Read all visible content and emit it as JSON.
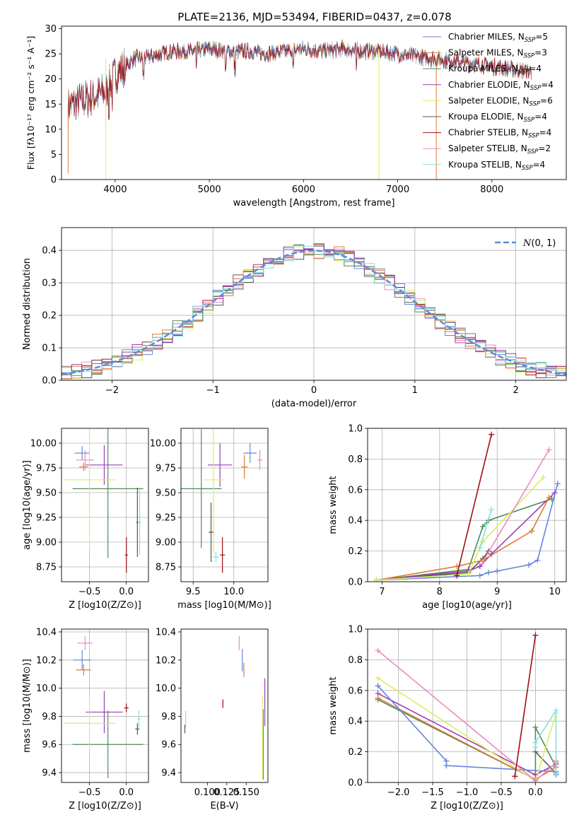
{
  "figure_title": "PLATE=2136, MJD=53494, FIBERID=0437, z=0.078",
  "colors": [
    "#6686d8",
    "#e07b35",
    "#4f8c5c",
    "#9b3fb4",
    "#d6f060",
    "#555555",
    "#a00f10",
    "#e88cc0",
    "#85e0e0"
  ],
  "chart_data": [
    {
      "type": "line",
      "panel": "spectrum",
      "xlabel": "wavelength [Angstrom, rest frame]",
      "ylabel": "Flux [fλ10⁻¹⁷ erg cm⁻² s⁻¹ A⁻¹]",
      "xlim": [
        3430,
        8790
      ],
      "ylim": [
        0,
        30.5
      ],
      "xticks": [
        4000,
        5000,
        6000,
        7000,
        8000
      ],
      "yticks": [
        0,
        5,
        10,
        15,
        20,
        25,
        30
      ],
      "legend_position": "right",
      "continuum": {
        "x": [
          3500,
          3700,
          3900,
          4000,
          4200,
          4400,
          4600,
          4800,
          5000,
          5200,
          5400,
          5600,
          5800,
          6000,
          6200,
          6400,
          6600,
          6800,
          7000,
          7200,
          7400,
          7600,
          7800,
          8000,
          8200,
          8400
        ],
        "y": [
          14.5,
          16,
          17.5,
          21,
          24,
          24.5,
          25.5,
          25.5,
          26,
          25.5,
          25.5,
          25,
          25.5,
          26,
          25.5,
          26,
          25.5,
          25.5,
          25,
          24.5,
          24,
          23.5,
          23,
          22.5,
          22,
          21.5
        ]
      },
      "series": [
        {
          "name": "Chabrier MILES, N_SSP=5",
          "legend_text": "Chabrier MILES, NSSP=5"
        },
        {
          "name": "Salpeter MILES, N_SSP=3",
          "legend_text": "Salpeter MILES, NSSP=3"
        },
        {
          "name": "Kroupa MILES, N_SSP=4",
          "legend_text": "Kroupa MILES, NSSP=4"
        },
        {
          "name": "Chabrier ELODIE, N_SSP=4",
          "legend_text": "Chabrier ELODIE, NSSP=4"
        },
        {
          "name": "Salpeter ELODIE, N_SSP=6",
          "legend_text": "Salpeter ELODIE, NSSP=6"
        },
        {
          "name": "Kroupa ELODIE, N_SSP=4",
          "legend_text": "Kroupa ELODIE, NSSP=4"
        },
        {
          "name": "Chabrier STELIB, N_SSP=4",
          "legend_text": "Chabrier STELIB, NSSP=4"
        },
        {
          "name": "Salpeter STELIB, N_SSP=2",
          "legend_text": "Salpeter STELIB, NSSP=2"
        },
        {
          "name": "Kroupa STELIB, N_SSP=4",
          "legend_text": "Kroupa STELIB, NSSP=4"
        }
      ]
    },
    {
      "type": "line",
      "panel": "residual_histogram",
      "xlabel": "(data-model)/error",
      "ylabel": "Normed distribution",
      "xlim": [
        -2.5,
        2.5
      ],
      "ylim": [
        0,
        0.47
      ],
      "xticks": [
        -2,
        -1,
        0,
        1,
        2
      ],
      "yticks": [
        0.0,
        0.1,
        0.2,
        0.3,
        0.4
      ],
      "grid": true,
      "legend_position": "top-right",
      "reference": {
        "name": "N(0,1)",
        "mean": 0,
        "sd": 1
      },
      "bin_width": 0.1
    },
    {
      "type": "scatter",
      "panel": "age_vs_Z",
      "xlabel": "Z [log10(Z/Z⊙)]",
      "ylabel": "age [log10(age/yr)]",
      "xlim": [
        -0.88,
        0.3
      ],
      "ylim": [
        8.6,
        10.15
      ],
      "xticks": [
        -0.5,
        0.0
      ],
      "yticks": [
        8.75,
        9.0,
        9.25,
        9.5,
        9.75,
        10.0
      ],
      "grid": true,
      "points": [
        {
          "x": -0.6,
          "y": 9.9,
          "xerr": 0.1,
          "yerr": 0.07
        },
        {
          "x": -0.58,
          "y": 9.76,
          "xerr": 0.06,
          "yerr": 0.04
        },
        {
          "x": -0.25,
          "y": 9.54,
          "xerr": 0.48,
          "yerr": 0.7
        },
        {
          "x": -0.3,
          "y": 9.78,
          "xerr": 0.25,
          "yerr": 0.2
        },
        {
          "x": -0.5,
          "y": 9.63,
          "xerr": 0.35,
          "yerr": 0.7
        },
        {
          "x": 0.15,
          "y": 9.2,
          "xerr": 0.02,
          "yerr": 0.35
        },
        {
          "x": 0.0,
          "y": 8.87,
          "xerr": 0.02,
          "yerr": 0.18
        },
        {
          "x": -0.56,
          "y": 9.83,
          "xerr": 0.12,
          "yerr": 0.1
        },
        {
          "x": 0.18,
          "y": 9.2,
          "xerr": 0.02,
          "yerr": 0.33
        }
      ]
    },
    {
      "type": "scatter",
      "panel": "age_vs_mass",
      "xlabel": "mass [log10(M/M⊙)]",
      "xlim": [
        9.35,
        10.42
      ],
      "ylim": [
        8.6,
        10.15
      ],
      "xticks": [
        9.5,
        10.0
      ],
      "yticks": [
        8.75,
        9.0,
        9.25,
        9.5,
        9.75,
        10.0
      ],
      "grid": true,
      "points": [
        {
          "x": 10.2,
          "y": 9.9,
          "xerr": 0.08,
          "yerr": 0.1
        },
        {
          "x": 10.13,
          "y": 9.76,
          "xerr": 0.04,
          "yerr": 0.12
        },
        {
          "x": 9.6,
          "y": 9.54,
          "xerr": 0.25,
          "yerr": 0.6
        },
        {
          "x": 9.83,
          "y": 9.78,
          "xerr": 0.15,
          "yerr": 0.22
        },
        {
          "x": 9.75,
          "y": 9.63,
          "xerr": 0.12,
          "yerr": 0.75
        },
        {
          "x": 9.72,
          "y": 9.1,
          "xerr": 0.03,
          "yerr": 0.3
        },
        {
          "x": 9.86,
          "y": 8.87,
          "xerr": 0.03,
          "yerr": 0.18
        },
        {
          "x": 10.32,
          "y": 9.83,
          "xerr": 0.03,
          "yerr": 0.1
        },
        {
          "x": 9.78,
          "y": 8.85,
          "xerr": 0.04,
          "yerr": 0.05
        }
      ]
    },
    {
      "type": "line",
      "panel": "mass_weight_vs_age",
      "xlabel": "age [log10(age/yr)]",
      "ylabel": "mass weight",
      "xlim": [
        6.75,
        10.2
      ],
      "ylim": [
        0,
        1.0
      ],
      "xticks": [
        7,
        8,
        9,
        10
      ],
      "yticks": [
        0.0,
        0.2,
        0.4,
        0.6,
        0.8,
        1.0
      ],
      "grid": true,
      "series": [
        {
          "x": [
            6.9,
            8.7,
            8.85,
            9.0,
            9.55,
            9.7,
            10.05
          ],
          "y": [
            0.01,
            0.04,
            0.06,
            0.07,
            0.11,
            0.14,
            0.64
          ]
        },
        {
          "x": [
            6.9,
            8.3,
            8.75,
            9.6,
            9.9
          ],
          "y": [
            0.01,
            0.1,
            0.14,
            0.33,
            0.55
          ]
        },
        {
          "x": [
            6.9,
            8.5,
            8.75,
            8.85,
            9.95
          ],
          "y": [
            0.01,
            0.08,
            0.36,
            0.4,
            0.54
          ]
        },
        {
          "x": [
            6.9,
            8.5,
            8.7,
            8.9,
            10.0
          ],
          "y": [
            0.01,
            0.07,
            0.1,
            0.18,
            0.58
          ]
        },
        {
          "x": [
            6.9,
            8.5,
            8.75,
            9.8
          ],
          "y": [
            0.01,
            0.05,
            0.26,
            0.68
          ]
        },
        {
          "x": [
            6.9,
            8.5,
            8.75,
            8.85
          ],
          "y": [
            0.01,
            0.06,
            0.15,
            0.2
          ]
        },
        {
          "x": [
            8.3,
            8.9
          ],
          "y": [
            0.04,
            0.96
          ]
        },
        {
          "x": [
            8.75,
            9.9
          ],
          "y": [
            0.13,
            0.86
          ]
        },
        {
          "x": [
            8.7,
            8.9
          ],
          "y": [
            0.22,
            0.47
          ]
        }
      ]
    },
    {
      "type": "scatter",
      "panel": "mass_vs_Z",
      "xlabel": "Z [log10(Z/Z⊙)]",
      "ylabel": "mass [log10(M/M⊙)]",
      "xlim": [
        -0.88,
        0.3
      ],
      "ylim": [
        9.33,
        10.42
      ],
      "xticks": [
        -0.5,
        0.0
      ],
      "yticks": [
        9.4,
        9.6,
        9.8,
        10.0,
        10.2,
        10.4
      ],
      "grid": true,
      "points": [
        {
          "x": -0.6,
          "y": 10.2,
          "xerr": 0.12,
          "yerr": 0.07
        },
        {
          "x": -0.58,
          "y": 10.13,
          "xerr": 0.1,
          "yerr": 0.04
        },
        {
          "x": -0.25,
          "y": 9.6,
          "xerr": 0.48,
          "yerr": 0.24
        },
        {
          "x": -0.3,
          "y": 9.83,
          "xerr": 0.25,
          "yerr": 0.15
        },
        {
          "x": -0.5,
          "y": 9.75,
          "xerr": 0.35,
          "yerr": 0.2
        },
        {
          "x": 0.15,
          "y": 9.71,
          "xerr": 0.03,
          "yerr": 0.04
        },
        {
          "x": 0.0,
          "y": 9.86,
          "xerr": 0.03,
          "yerr": 0.03
        },
        {
          "x": -0.56,
          "y": 10.32,
          "xerr": 0.1,
          "yerr": 0.05
        },
        {
          "x": 0.17,
          "y": 9.78,
          "xerr": 0.02,
          "yerr": 0.06
        }
      ]
    },
    {
      "type": "scatter",
      "panel": "mass_vs_EBV",
      "xlabel": "E(B-V)",
      "xlim": [
        0.066,
        0.178
      ],
      "ylim": [
        9.33,
        10.42
      ],
      "xticks": [
        0.1,
        0.125,
        0.15
      ],
      "yticks": [
        9.4,
        9.6,
        9.8,
        10.0,
        10.2,
        10.4
      ],
      "grid": false,
      "points": [
        {
          "x": 0.145,
          "y": 10.2,
          "yerr": 0.08
        },
        {
          "x": 0.147,
          "y": 10.13,
          "yerr": 0.05
        },
        {
          "x": 0.172,
          "y": 9.6,
          "yerr": 0.25
        },
        {
          "x": 0.174,
          "y": 9.9,
          "yerr": 0.17
        },
        {
          "x": 0.171,
          "y": 9.65,
          "yerr": 0.3
        },
        {
          "x": 0.071,
          "y": 9.71,
          "yerr": 0.03
        },
        {
          "x": 0.12,
          "y": 9.89,
          "yerr": 0.03
        },
        {
          "x": 0.141,
          "y": 10.32,
          "yerr": 0.05
        },
        {
          "x": 0.072,
          "y": 9.78,
          "yerr": 0.06
        }
      ]
    },
    {
      "type": "line",
      "panel": "mass_weight_vs_Z",
      "xlabel": "Z [log10(Z/Z⊙)]",
      "ylabel": "mass weight",
      "xlim": [
        -2.45,
        0.45
      ],
      "ylim": [
        0,
        1.0
      ],
      "xticks": [
        -2.0,
        -1.5,
        -1.0,
        -0.5,
        0.0
      ],
      "yticks": [
        0.0,
        0.2,
        0.4,
        0.6,
        0.8,
        1.0
      ],
      "grid": true,
      "series": [
        {
          "x": [
            -2.3,
            -1.3,
            -1.3,
            0.3,
            0.3
          ],
          "y": [
            0.63,
            0.14,
            0.11,
            0.07,
            0.05
          ]
        },
        {
          "x": [
            -2.3,
            0.0,
            0.3,
            0.3
          ],
          "y": [
            0.55,
            0.02,
            0.1,
            0.14
          ]
        },
        {
          "x": [
            -2.3,
            0.0,
            0.0,
            0.3
          ],
          "y": [
            0.54,
            0.02,
            0.36,
            0.1
          ]
        },
        {
          "x": [
            -2.3,
            0.0,
            0.3
          ],
          "y": [
            0.58,
            0.05,
            0.12
          ]
        },
        {
          "x": [
            -2.3,
            0.0,
            0.3
          ],
          "y": [
            0.68,
            0.01,
            0.45
          ]
        },
        {
          "x": [
            0.0,
            0.3
          ],
          "y": [
            0.2,
            0.06
          ]
        },
        {
          "x": [
            -0.3,
            0.0
          ],
          "y": [
            0.04,
            0.96
          ]
        },
        {
          "x": [
            -2.3,
            0.0,
            0.3
          ],
          "y": [
            0.86,
            0.01,
            0.13
          ]
        },
        {
          "x": [
            0.0,
            0.0,
            0.3,
            0.3
          ],
          "y": [
            0.23,
            0.26,
            0.47,
            0.06
          ]
        }
      ]
    }
  ]
}
